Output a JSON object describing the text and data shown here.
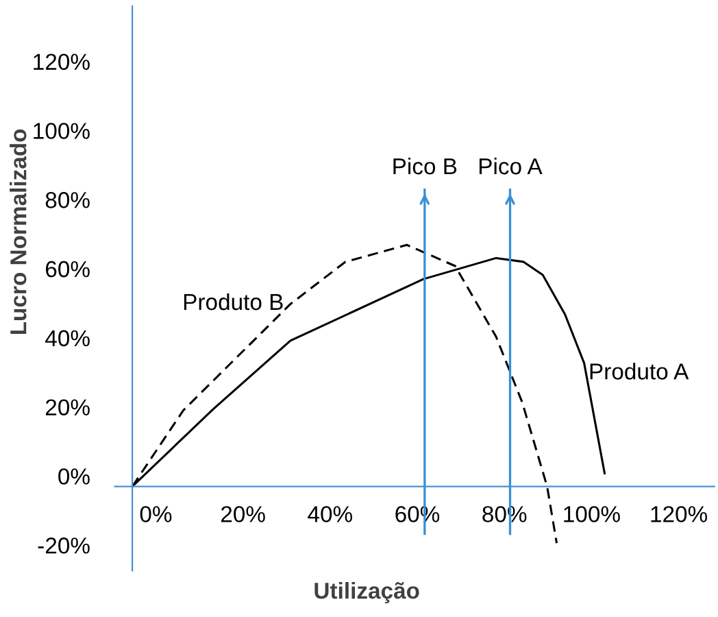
{
  "chart_data": {
    "type": "line",
    "xlabel": "Utilização",
    "ylabel": "Lucro Normalizado",
    "xlim": [
      -9.4,
      128.2
    ],
    "ylim": [
      -27.4,
      136
    ],
    "xticks": [
      {
        "value": 0,
        "label": "0%"
      },
      {
        "value": 20,
        "label": "20%"
      },
      {
        "value": 40,
        "label": "40%"
      },
      {
        "value": 60,
        "label": "60%"
      },
      {
        "value": 80,
        "label": "80%"
      },
      {
        "value": 100,
        "label": "100%"
      },
      {
        "value": 120,
        "label": "120%"
      }
    ],
    "yticks": [
      {
        "value": -20,
        "label": "-20%"
      },
      {
        "value": 0,
        "label": "0%"
      },
      {
        "value": 20,
        "label": "20%"
      },
      {
        "value": 40,
        "label": "40%"
      },
      {
        "value": 60,
        "label": "60%"
      },
      {
        "value": 80,
        "label": "80%"
      },
      {
        "value": 100,
        "label": "100%"
      },
      {
        "value": 120,
        "label": "120%"
      }
    ],
    "series": [
      {
        "name": "Produto A",
        "color": "#000000",
        "line_style": "solid",
        "x": [
          -5.4,
          13.2,
          30.9,
          61.4,
          78.1,
          84.4,
          88.8,
          93.9,
          98.3,
          103.0
        ],
        "values": [
          -3.0,
          19.4,
          39.2,
          57.0,
          63.1,
          62.0,
          58.2,
          46.8,
          32.7,
          0.8
        ]
      },
      {
        "name": "Produto B",
        "color": "#000000",
        "line_style": "dashed",
        "x": [
          -5.4,
          6.3,
          30.9,
          43.5,
          57.6,
          68.7,
          78.1,
          84.1,
          89.8,
          92.0
        ],
        "values": [
          -3.0,
          19.0,
          49.8,
          62.0,
          66.9,
          60.8,
          40.3,
          21.3,
          -3.0,
          -19.4
        ]
      }
    ],
    "ref_lines": [
      {
        "axis": "x",
        "value": 61.7,
        "label": "Pico B",
        "color": "#3a8fd6"
      },
      {
        "axis": "x",
        "value": 81.3,
        "label": "Pico A",
        "color": "#3a8fd6"
      }
    ],
    "grid": false,
    "legend": false,
    "marker": "none"
  }
}
